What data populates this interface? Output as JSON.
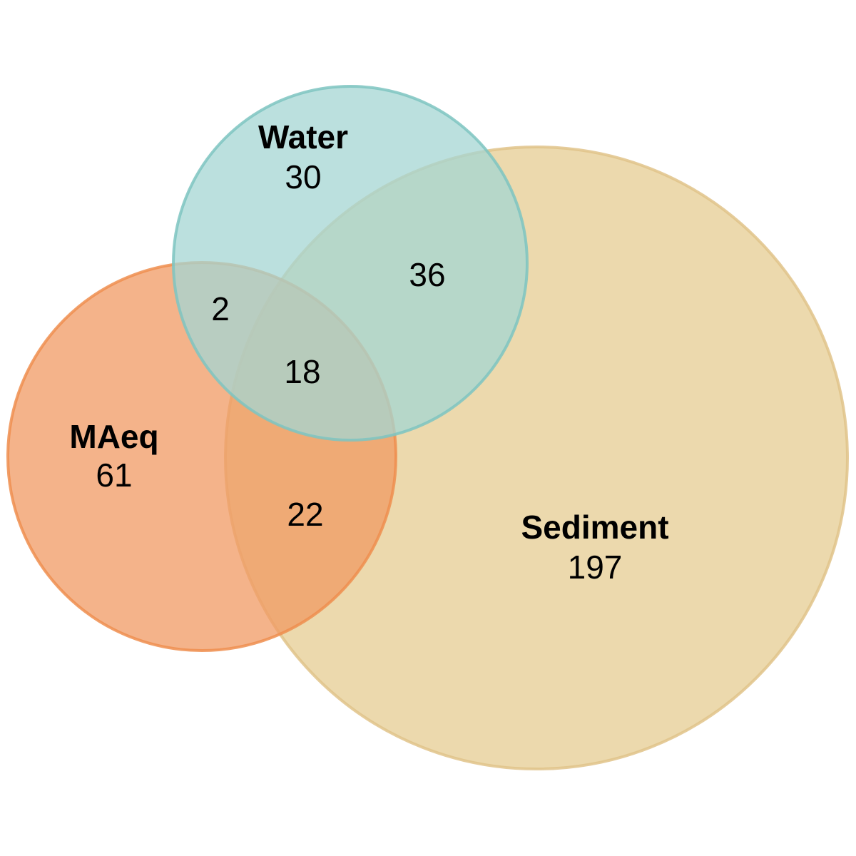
{
  "sets": {
    "water": {
      "label": "Water",
      "fill": "#a4d6d3",
      "stroke": "#7ec4c1"
    },
    "sediment": {
      "label": "Sediment",
      "fill": "#e6cc91",
      "stroke": "#e0c38a"
    },
    "maeq": {
      "label": "MAeq",
      "fill": "#f09a63",
      "stroke": "#ee8e4f"
    }
  },
  "counts": {
    "water_only": "30",
    "sediment_only": "197",
    "maeq_only": "61",
    "water_sediment": "36",
    "water_maeq": "2",
    "maeq_sediment": "22",
    "all_three": "18"
  }
}
